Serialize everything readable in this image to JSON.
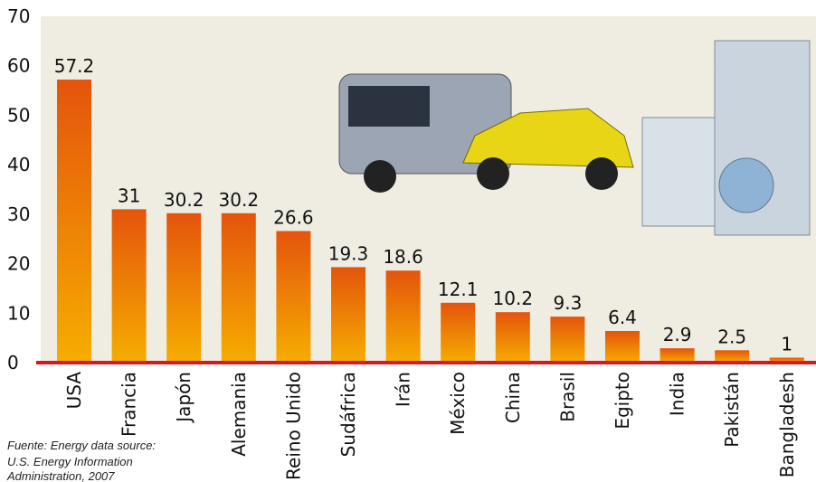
{
  "chart_data": {
    "type": "bar",
    "categories": [
      "USA",
      "Francia",
      "Japón",
      "Alemania",
      "Reino Unido",
      "Sudáfrica",
      "Irán",
      "México",
      "China",
      "Brasil",
      "Egipto",
      "India",
      "Pakistán",
      "Bangladesh"
    ],
    "values": [
      57.2,
      31,
      30.2,
      30.2,
      26.6,
      19.3,
      18.6,
      12.1,
      10.2,
      9.3,
      6.4,
      2.9,
      2.5,
      1
    ],
    "gradient": [
      "#e4540c",
      "#f6ad00"
    ],
    "baseline_color": "#d7191c",
    "ylim": [
      0,
      70
    ],
    "yticks": [
      0,
      10,
      20,
      30,
      40,
      50,
      60,
      70
    ],
    "note": [
      "Fuente: Energy data source:",
      "U.S. Energy Information",
      "Administration, 2007"
    ]
  }
}
